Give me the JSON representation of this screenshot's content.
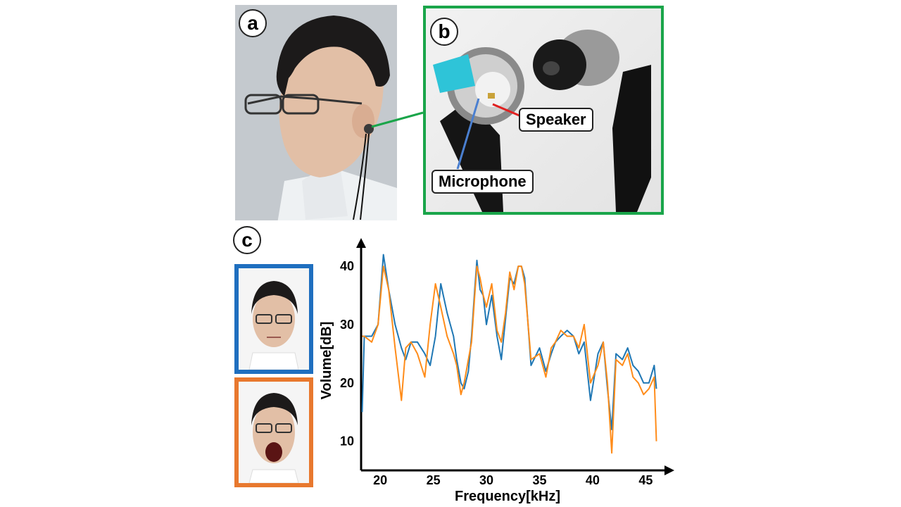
{
  "panels": {
    "a": {
      "letter": "a"
    },
    "b": {
      "letter": "b",
      "labels": {
        "speaker": "Speaker",
        "microphone": "Microphone"
      }
    },
    "c": {
      "letter": "c"
    }
  },
  "colors": {
    "frame_b": "#1aa54a",
    "speaker_line": "#e02020",
    "microphone_line": "#4a7fd0",
    "series_neutral": "#1f77b4",
    "series_open": "#ff8c1a"
  },
  "chart_data": {
    "type": "line",
    "xlabel": "Frequency[kHz]",
    "ylabel": "Volume[dB]",
    "xlim": [
      18.2,
      46.5
    ],
    "ylim": [
      5,
      44
    ],
    "xticks": [
      20,
      25,
      30,
      35,
      40,
      45
    ],
    "yticks": [
      10,
      20,
      30,
      40
    ],
    "grid": false,
    "series": [
      {
        "x": [
          18.3,
          18.5,
          19.2,
          19.8,
          20.3,
          20.8,
          21.4,
          22.0,
          22.4,
          22.9,
          23.5,
          24.2,
          24.7,
          25.2,
          25.7,
          26.3,
          26.9,
          27.2,
          27.6,
          27.9,
          28.3,
          28.6,
          28.9,
          29.1,
          29.4,
          29.7,
          30.0,
          30.5,
          31.0,
          31.4,
          31.8,
          32.2,
          32.6,
          33.0,
          33.3,
          33.6,
          34.2,
          35.0,
          35.6,
          36.1,
          36.5,
          37.0,
          37.6,
          38.2,
          38.7,
          39.2,
          39.8,
          40.5,
          41.0,
          41.4,
          41.8,
          42.2,
          42.8,
          43.3,
          43.8,
          44.3,
          44.8,
          45.3,
          45.8,
          46.0
        ],
        "values": [
          15,
          28,
          28,
          30,
          42,
          36,
          30,
          26,
          24,
          27,
          27,
          25,
          23,
          28,
          37,
          32,
          28,
          24,
          20,
          19,
          22,
          28,
          36,
          41,
          36,
          35,
          30,
          35,
          28,
          24,
          31,
          38,
          37,
          40,
          40,
          38,
          23,
          26,
          22,
          25,
          27,
          28,
          29,
          28,
          25,
          27,
          17,
          25,
          27,
          19,
          12,
          25,
          24,
          26,
          23,
          22,
          20,
          20,
          23,
          19
        ]
      },
      {
        "x": [
          18.3,
          18.5,
          19.2,
          19.8,
          20.3,
          20.8,
          21.4,
          22.0,
          22.4,
          22.9,
          23.5,
          24.2,
          24.7,
          25.2,
          25.7,
          26.3,
          26.9,
          27.2,
          27.6,
          27.9,
          28.3,
          28.6,
          28.9,
          29.1,
          29.4,
          29.7,
          30.0,
          30.5,
          31.0,
          31.4,
          31.8,
          32.2,
          32.6,
          33.0,
          33.3,
          33.6,
          34.2,
          35.0,
          35.6,
          36.1,
          36.5,
          37.0,
          37.6,
          38.2,
          38.7,
          39.2,
          39.8,
          40.5,
          41.0,
          41.4,
          41.8,
          42.2,
          42.8,
          43.3,
          43.8,
          44.3,
          44.8,
          45.3,
          45.8,
          46.0
        ],
        "values": [
          28,
          28,
          27,
          30,
          40,
          36,
          26,
          17,
          26,
          27,
          25,
          21,
          30,
          37,
          33,
          28,
          25,
          23,
          18,
          20,
          24,
          27,
          35,
          40,
          38,
          35,
          33,
          37,
          29,
          27,
          32,
          39,
          36,
          40,
          40,
          37,
          24,
          25,
          21,
          26,
          27,
          29,
          28,
          28,
          26,
          30,
          20,
          23,
          27,
          20,
          8,
          24,
          23,
          25,
          21,
          20,
          18,
          19,
          21,
          10
        ]
      }
    ]
  }
}
